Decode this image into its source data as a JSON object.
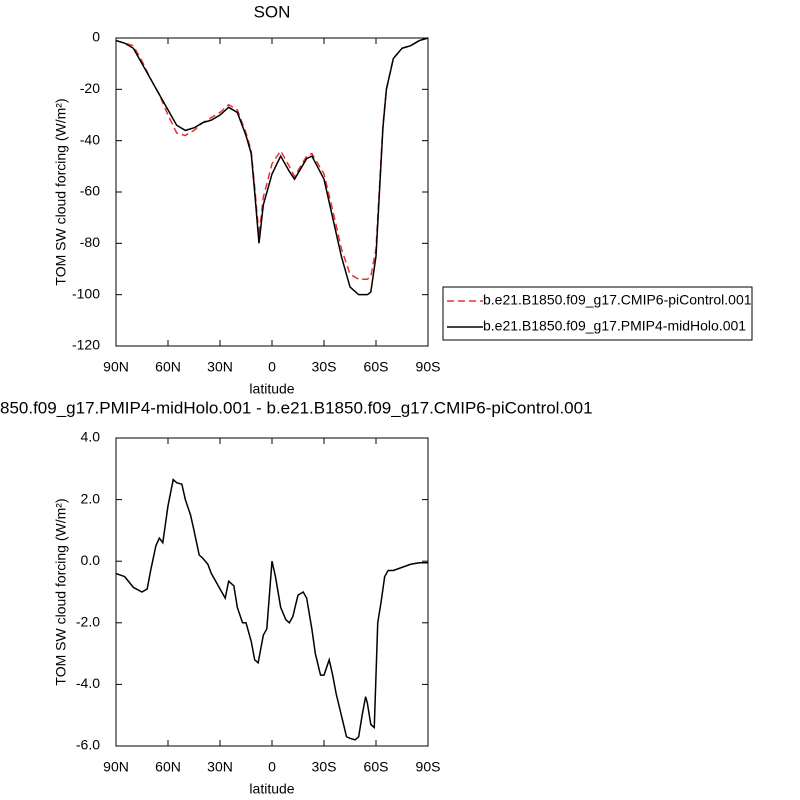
{
  "chart_data": [
    {
      "type": "line",
      "title": "SON",
      "xlabel": "latitude",
      "ylabel": "TOM SW cloud forcing (W/m²)",
      "x": [
        90,
        85,
        80,
        75,
        70,
        65,
        60,
        55,
        50,
        45,
        40,
        35,
        30,
        25,
        20,
        15,
        12,
        10,
        7.5,
        5,
        0,
        -5,
        -10,
        -13,
        -20,
        -23,
        -30,
        -35,
        -40,
        -45,
        -50,
        -55,
        -57,
        -60,
        -62,
        -64,
        -66,
        -70,
        -75,
        -80,
        -85,
        -90
      ],
      "series": [
        {
          "name": "b.e21.B1850.f09_g17.CMIP6-piControl.001",
          "color": "#e8312f",
          "dashed": true,
          "values": [
            -1,
            -2,
            -3,
            -9,
            -16,
            -22,
            -30,
            -37,
            -38,
            -36,
            -33,
            -31,
            -29,
            -26,
            -28,
            -37,
            -44,
            -58,
            -77,
            -62,
            -49,
            -44,
            -50,
            -54,
            -46,
            -45,
            -53,
            -67,
            -82,
            -92,
            -94,
            -94,
            -93,
            -82,
            -58,
            -34,
            -20,
            -8,
            -4,
            -3,
            -1,
            0
          ]
        },
        {
          "name": "b.e21.B1850.f09_g17.PMIP4-midHolo.001",
          "color": "#000000",
          "dashed": false,
          "values": [
            -1,
            -2,
            -4,
            -10,
            -16,
            -22,
            -28,
            -34,
            -36,
            -35,
            -33,
            -32,
            -30,
            -27,
            -29,
            -38,
            -45,
            -60,
            -80,
            -65,
            -53,
            -46,
            -52,
            -55,
            -47,
            -46,
            -55,
            -70,
            -85,
            -97,
            -100,
            -100,
            -99,
            -85,
            -60,
            -35,
            -20,
            -8,
            -4,
            -3,
            -1,
            0
          ]
        }
      ],
      "xlim": [
        90,
        -90
      ],
      "xticks": [
        {
          "value": 90,
          "label": "90N"
        },
        {
          "value": 60,
          "label": "60N"
        },
        {
          "value": 30,
          "label": "30N"
        },
        0,
        {
          "value": -30,
          "label": "30S"
        },
        {
          "value": -60,
          "label": "60S"
        },
        {
          "value": -90,
          "label": "90S"
        }
      ],
      "ylim": [
        -120,
        0
      ],
      "yticks": [
        -120,
        -100,
        -80,
        -60,
        -40,
        -20,
        0
      ],
      "legend": "right"
    },
    {
      "type": "line",
      "title": "850.f09_g17.PMIP4-midHolo.001 - b.e21.B1850.f09_g17.CMIP6-piControl.001",
      "xlabel": "latitude",
      "ylabel": "TOM SW cloud forcing (W/m²)",
      "x": [
        90,
        85,
        80,
        75,
        72,
        70,
        67,
        65,
        63,
        60,
        57,
        55,
        52,
        50,
        47,
        45,
        42,
        40,
        37,
        35,
        32,
        30,
        27,
        25,
        22,
        20,
        17,
        15,
        12,
        10,
        8,
        5,
        3,
        0,
        -2,
        -5,
        -8,
        -10,
        -12,
        -15,
        -18,
        -20,
        -23,
        -25,
        -28,
        -30,
        -33,
        -35,
        -37,
        -40,
        -43,
        -45,
        -48,
        -50,
        -52,
        -54,
        -55,
        -57,
        -59,
        -61,
        -63,
        -65,
        -67,
        -70,
        -75,
        -80,
        -85,
        -90
      ],
      "series": [
        {
          "name": null,
          "color": "#000000",
          "dashed": false,
          "values": [
            -0.4,
            -0.5,
            -0.85,
            -1.0,
            -0.9,
            -0.3,
            0.5,
            0.75,
            0.6,
            1.8,
            2.65,
            2.55,
            2.5,
            2.0,
            1.5,
            1.0,
            0.2,
            0.1,
            -0.1,
            -0.4,
            -0.7,
            -0.9,
            -1.2,
            -0.65,
            -0.8,
            -1.5,
            -2.0,
            -2.0,
            -2.6,
            -3.2,
            -3.3,
            -2.4,
            -2.2,
            0.0,
            -0.5,
            -1.5,
            -1.9,
            -2.0,
            -1.8,
            -1.1,
            -1.0,
            -1.2,
            -2.2,
            -3.0,
            -3.7,
            -3.7,
            -3.2,
            -3.7,
            -4.3,
            -5.0,
            -5.7,
            -5.75,
            -5.8,
            -5.7,
            -5.0,
            -4.4,
            -4.6,
            -5.3,
            -5.4,
            -2.0,
            -1.3,
            -0.5,
            -0.3,
            -0.3,
            -0.2,
            -0.1,
            -0.05,
            -0.05
          ]
        }
      ],
      "xlim": [
        90,
        -90
      ],
      "xticks": [
        {
          "value": 90,
          "label": "90N"
        },
        {
          "value": 60,
          "label": "60N"
        },
        {
          "value": 30,
          "label": "30N"
        },
        0,
        {
          "value": -30,
          "label": "30S"
        },
        {
          "value": -60,
          "label": "60S"
        },
        {
          "value": -90,
          "label": "90S"
        }
      ],
      "ylim": [
        -6,
        4
      ],
      "yticks": [
        {
          "value": -6,
          "label": "-6.0"
        },
        {
          "value": -4,
          "label": "-4.0"
        },
        {
          "value": -2,
          "label": "-2.0"
        },
        {
          "value": 0,
          "label": "0.0"
        },
        {
          "value": 2,
          "label": "2.0"
        },
        {
          "value": 4,
          "label": "4.0"
        }
      ]
    }
  ]
}
